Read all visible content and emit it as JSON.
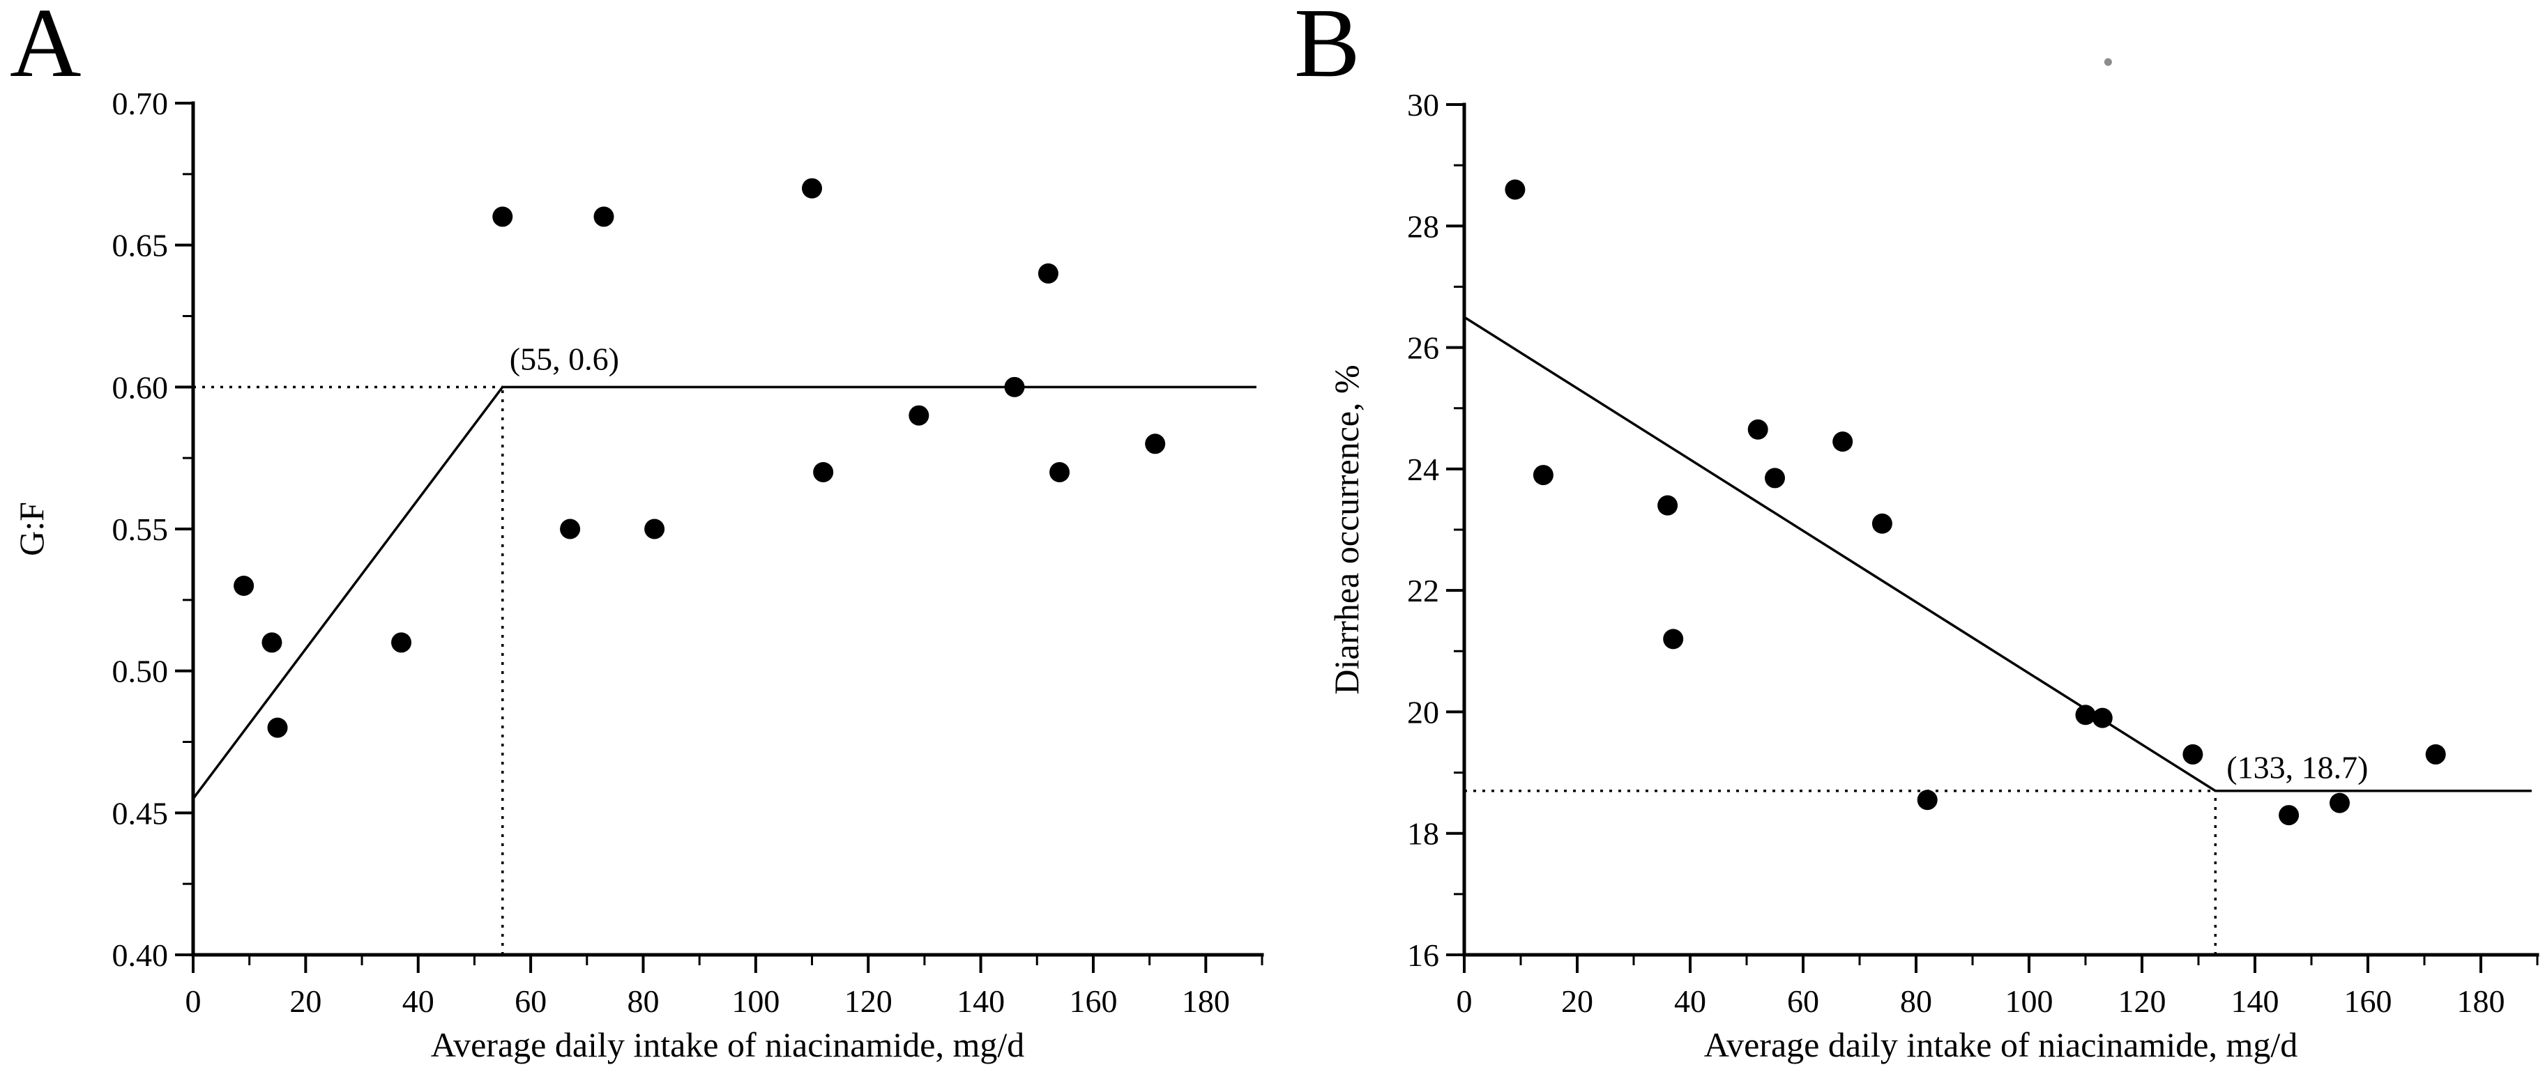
{
  "figure": {
    "background": "#ffffff",
    "ink_color": "#000000",
    "point_color": "#000000"
  },
  "chart_data": [
    {
      "panel_label": "A",
      "type": "scatter",
      "title": "",
      "xlabel": "Average daily intake of niacinamide, mg/d",
      "ylabel": "G:F",
      "xlim": [
        0,
        190
      ],
      "ylim": [
        0.4,
        0.7
      ],
      "grid": false,
      "legend": null,
      "x_major_ticks": {
        "values": [
          0,
          20,
          40,
          60,
          80,
          100,
          120,
          140,
          160,
          180
        ],
        "labels": [
          "0",
          "20",
          "40",
          "60",
          "80",
          "100",
          "120",
          "140",
          "160",
          "180"
        ]
      },
      "x_minor_ticks": [
        10,
        30,
        50,
        70,
        90,
        110,
        130,
        150,
        170,
        190
      ],
      "y_major_ticks": {
        "values": [
          0.4,
          0.45,
          0.5,
          0.55,
          0.6,
          0.65,
          0.7
        ],
        "labels": [
          "0.40",
          "0.45",
          "0.50",
          "0.55",
          "0.60",
          "0.65",
          "0.70"
        ]
      },
      "y_minor_ticks": [
        0.425,
        0.475,
        0.525,
        0.575,
        0.625,
        0.675
      ],
      "points": [
        [
          9,
          0.53
        ],
        [
          14,
          0.51
        ],
        [
          15,
          0.48
        ],
        [
          37,
          0.51
        ],
        [
          55,
          0.66
        ],
        [
          67,
          0.55
        ],
        [
          73,
          0.66
        ],
        [
          82,
          0.55
        ],
        [
          110,
          0.67
        ],
        [
          112,
          0.57
        ],
        [
          129,
          0.59
        ],
        [
          146,
          0.6
        ],
        [
          152,
          0.64
        ],
        [
          154,
          0.57
        ],
        [
          171,
          0.58
        ]
      ],
      "regression_line": [
        [
          0,
          0.455
        ],
        [
          55,
          0.6
        ],
        [
          189,
          0.6
        ]
      ],
      "breakpoint": {
        "x": 55,
        "y": 0.6,
        "label": "(55, 0.6)"
      }
    },
    {
      "panel_label": "B",
      "type": "scatter",
      "title": "",
      "xlabel": "Average daily intake of niacinamide, mg/d",
      "ylabel": "Diarrhea occurrence, %",
      "xlim": [
        0,
        190
      ],
      "ylim": [
        16,
        30
      ],
      "grid": false,
      "legend": null,
      "x_major_ticks": {
        "values": [
          0,
          20,
          40,
          60,
          80,
          100,
          120,
          140,
          160,
          180
        ],
        "labels": [
          "0",
          "20",
          "40",
          "60",
          "80",
          "100",
          "120",
          "140",
          "160",
          "180"
        ]
      },
      "x_minor_ticks": [
        10,
        30,
        50,
        70,
        90,
        110,
        130,
        150,
        170,
        190
      ],
      "y_major_ticks": {
        "values": [
          16,
          18,
          20,
          22,
          24,
          26,
          28,
          30
        ],
        "labels": [
          "16",
          "18",
          "20",
          "22",
          "24",
          "26",
          "28",
          "30"
        ]
      },
      "y_minor_ticks": [
        17,
        19,
        21,
        23,
        25,
        27,
        29
      ],
      "points": [
        [
          9,
          28.6
        ],
        [
          14,
          23.9
        ],
        [
          36,
          23.4
        ],
        [
          37,
          21.2
        ],
        [
          52,
          24.65
        ],
        [
          55,
          23.85
        ],
        [
          67,
          24.45
        ],
        [
          74,
          23.1
        ],
        [
          82,
          18.55
        ],
        [
          110,
          19.95
        ],
        [
          113,
          19.9
        ],
        [
          129,
          19.3
        ],
        [
          146,
          18.3
        ],
        [
          155,
          18.5
        ],
        [
          172,
          19.3
        ]
      ],
      "regression_line": [
        [
          0,
          26.5
        ],
        [
          133,
          18.7
        ],
        [
          189,
          18.7
        ]
      ],
      "breakpoint": {
        "x": 133,
        "y": 18.7,
        "label": "(133, 18.7)"
      },
      "stray_mark": {
        "x": 114,
        "y": 30.7,
        "color": "#8c8c8c"
      }
    }
  ]
}
